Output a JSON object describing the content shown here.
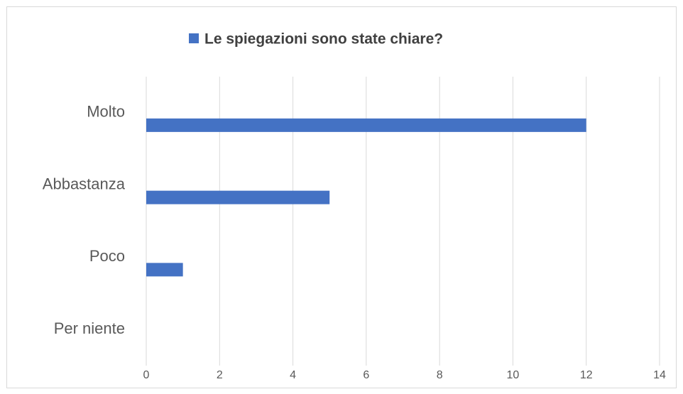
{
  "chart_data": {
    "type": "bar",
    "orientation": "horizontal",
    "categories": [
      "Molto",
      "Abbastanza",
      "Poco",
      "Per niente"
    ],
    "series": [
      {
        "name": "Le spiegazioni sono state chiare?",
        "color": "#4472c4",
        "values": [
          12,
          5,
          1,
          0
        ]
      }
    ],
    "xlim": [
      0,
      14
    ],
    "xticks": [
      0,
      2,
      4,
      6,
      8,
      10,
      12,
      14
    ],
    "grid": true,
    "legend": "top"
  }
}
